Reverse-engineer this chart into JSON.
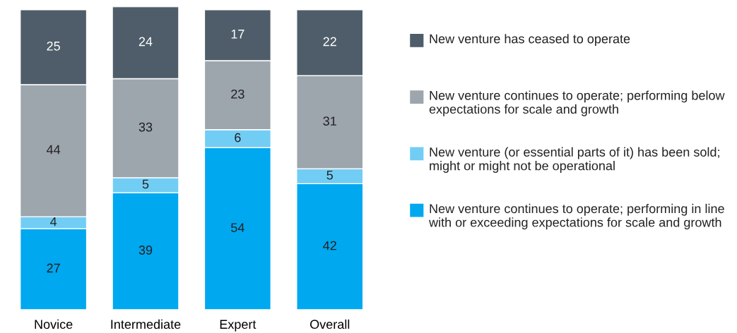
{
  "chart_data": {
    "type": "bar",
    "stacked": true,
    "data_labels": true,
    "legend": "right",
    "grid": false,
    "categories": [
      "Novice",
      "Intermediate",
      "Expert",
      "Overall"
    ],
    "series": [
      {
        "name": "New venture continues to operate; performing in line with or exceeding expectations for scale and growth",
        "color": "#00a8f0",
        "values": [
          27,
          39,
          54,
          42
        ]
      },
      {
        "name": "New venture (or essential parts of it) has been sold; might or might not be operational",
        "color": "#72cdf4",
        "values": [
          4,
          5,
          6,
          5
        ]
      },
      {
        "name": "New venture continues to operate; performing below expectations for scale and growth",
        "color": "#9da5ad",
        "values": [
          44,
          33,
          23,
          31
        ]
      },
      {
        "name": "New venture has ceased to operate",
        "color": "#4e5d69",
        "values": [
          25,
          24,
          17,
          22
        ]
      }
    ]
  }
}
